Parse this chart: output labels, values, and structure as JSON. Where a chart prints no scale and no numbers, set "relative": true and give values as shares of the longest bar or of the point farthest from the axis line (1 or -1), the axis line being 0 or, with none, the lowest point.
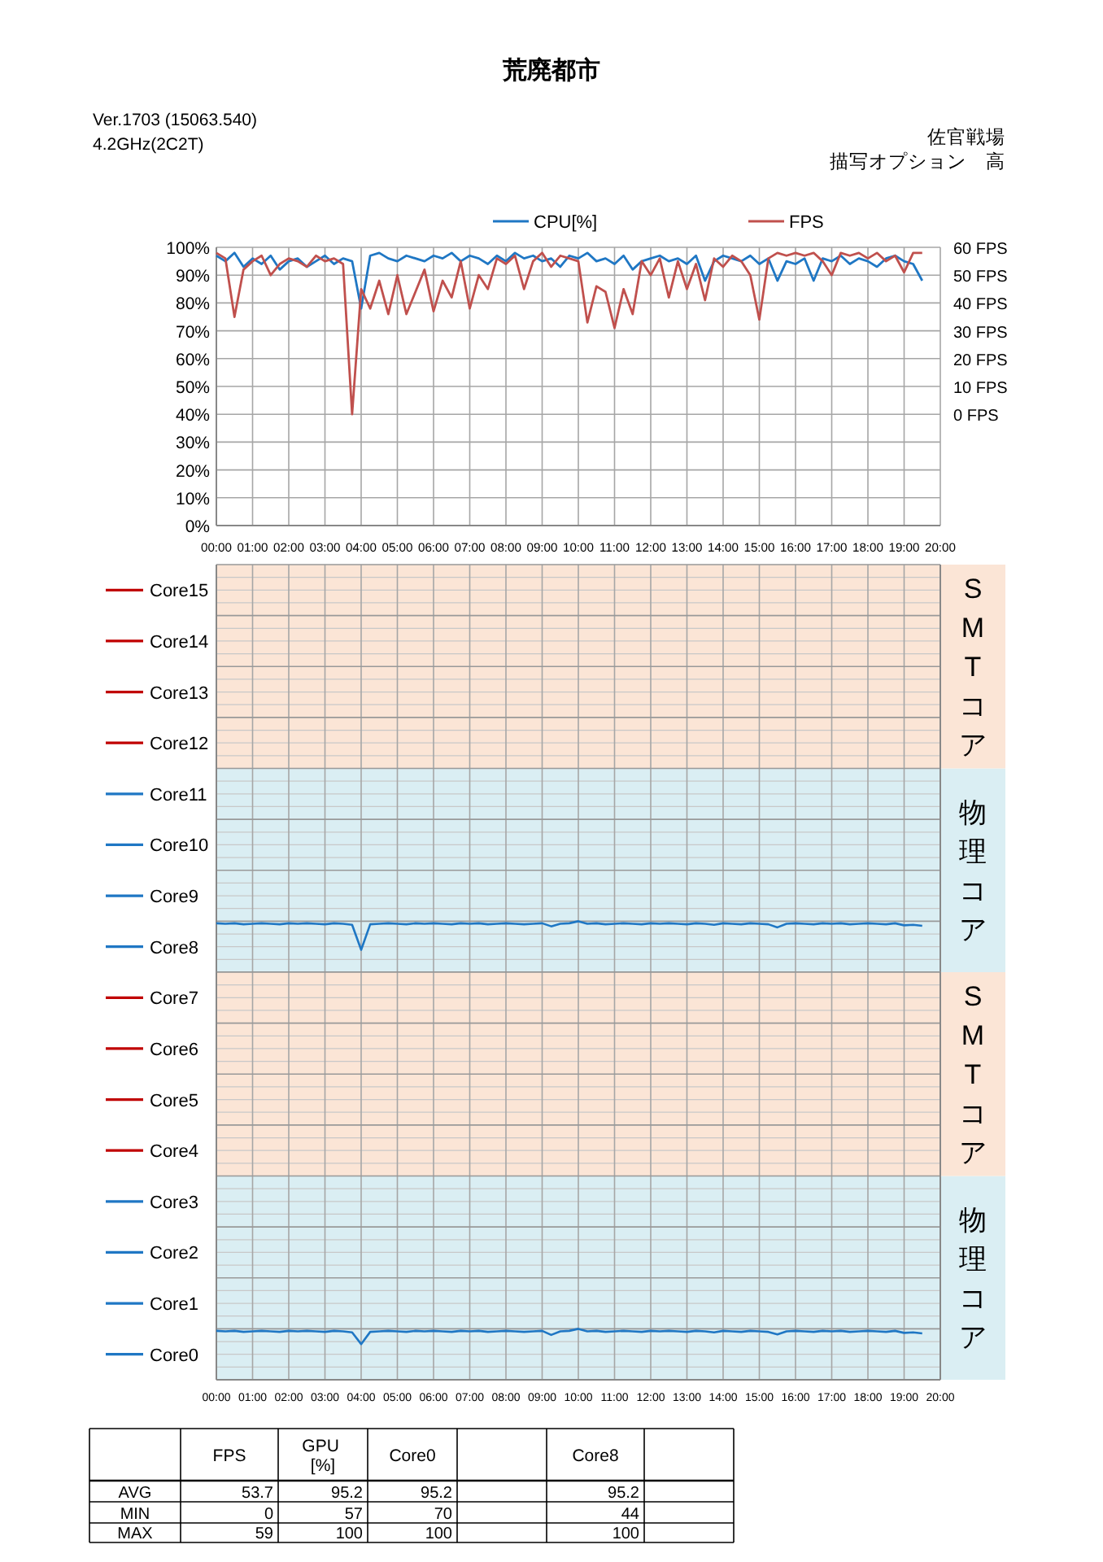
{
  "chart_data": [
    {
      "type": "line",
      "title": "荒廃都市",
      "annotations": [
        "Ver.1703 (15063.540)",
        "4.2GHz(2C2T)",
        "佐官戦場",
        "描写オプション　高"
      ],
      "x": [
        0,
        0.25,
        0.5,
        0.75,
        1,
        1.25,
        1.5,
        1.75,
        2,
        2.25,
        2.5,
        2.75,
        3,
        3.25,
        3.5,
        3.75,
        4,
        4.25,
        4.5,
        4.75,
        5,
        5.25,
        5.5,
        5.75,
        6,
        6.25,
        6.5,
        6.75,
        7,
        7.25,
        7.5,
        7.75,
        8,
        8.25,
        8.5,
        8.75,
        9,
        9.25,
        9.5,
        9.75,
        10,
        10.25,
        10.5,
        10.75,
        11,
        11.25,
        11.5,
        11.75,
        12,
        12.25,
        12.5,
        12.75,
        13,
        13.25,
        13.5,
        13.75,
        14,
        14.25,
        14.5,
        14.75,
        15,
        15.25,
        15.5,
        15.75,
        16,
        16.25,
        16.5,
        16.75,
        17,
        17.25,
        17.5,
        17.75,
        18,
        18.25,
        18.5,
        18.75,
        19,
        19.25,
        19.5
      ],
      "xlim": [
        0,
        20
      ],
      "xticks": [
        {
          "value": 0,
          "label": "00:00"
        },
        {
          "value": 1,
          "label": "01:00"
        },
        {
          "value": 2,
          "label": "02:00"
        },
        {
          "value": 3,
          "label": "03:00"
        },
        {
          "value": 4,
          "label": "04:00"
        },
        {
          "value": 5,
          "label": "05:00"
        },
        {
          "value": 6,
          "label": "06:00"
        },
        {
          "value": 7,
          "label": "07:00"
        },
        {
          "value": 8,
          "label": "08:00"
        },
        {
          "value": 9,
          "label": "09:00"
        },
        {
          "value": 10,
          "label": "10:00"
        },
        {
          "value": 11,
          "label": "11:00"
        },
        {
          "value": 12,
          "label": "12:00"
        },
        {
          "value": 13,
          "label": "13:00"
        },
        {
          "value": 14,
          "label": "14:00"
        },
        {
          "value": 15,
          "label": "15:00"
        },
        {
          "value": 16,
          "label": "16:00"
        },
        {
          "value": 17,
          "label": "17:00"
        },
        {
          "value": 18,
          "label": "18:00"
        },
        {
          "value": 19,
          "label": "19:00"
        },
        {
          "value": 20,
          "label": "20:00"
        }
      ],
      "ylim": [
        0,
        100
      ],
      "yticks": [
        {
          "value": 0,
          "label": "0%"
        },
        {
          "value": 10,
          "label": "10%"
        },
        {
          "value": 20,
          "label": "20%"
        },
        {
          "value": 30,
          "label": "30%"
        },
        {
          "value": 40,
          "label": "40%"
        },
        {
          "value": 50,
          "label": "50%"
        },
        {
          "value": 60,
          "label": "60%"
        },
        {
          "value": 70,
          "label": "70%"
        },
        {
          "value": 80,
          "label": "80%"
        },
        {
          "value": 90,
          "label": "90%"
        },
        {
          "value": 100,
          "label": "100%"
        }
      ],
      "y2lim": [
        -40,
        60
      ],
      "y2ticks": [
        {
          "value": 0,
          "label": "0 FPS"
        },
        {
          "value": 10,
          "label": "10 FPS"
        },
        {
          "value": 20,
          "label": "20 FPS"
        },
        {
          "value": 30,
          "label": "30 FPS"
        },
        {
          "value": 40,
          "label": "40 FPS"
        },
        {
          "value": 50,
          "label": "50 FPS"
        },
        {
          "value": 60,
          "label": "60 FPS"
        }
      ],
      "grid": true,
      "legend": "top",
      "series": [
        {
          "name": "CPU[%]",
          "color": "#1f77c4",
          "values": [
            97,
            95,
            98,
            93,
            96,
            94,
            97,
            92,
            95,
            96,
            93,
            95,
            97,
            94,
            96,
            95,
            78,
            97,
            98,
            96,
            95,
            97,
            96,
            95,
            97,
            96,
            98,
            95,
            97,
            96,
            94,
            97,
            95,
            98,
            96,
            97,
            95,
            96,
            93,
            97,
            96,
            98,
            95,
            96,
            94,
            97,
            92,
            95,
            96,
            97,
            95,
            96,
            94,
            97,
            88,
            95,
            97,
            96,
            95,
            97,
            94,
            96,
            88,
            95,
            94,
            96,
            88,
            96,
            95,
            97,
            94,
            96,
            95,
            93,
            96,
            97,
            95,
            94,
            88
          ]
        },
        {
          "name": "FPS",
          "color": "#c0504d",
          "axis": "y2",
          "values": [
            58,
            56,
            35,
            52,
            55,
            57,
            50,
            54,
            56,
            55,
            53,
            57,
            55,
            56,
            54,
            0,
            45,
            38,
            48,
            36,
            50,
            36,
            44,
            52,
            37,
            48,
            42,
            55,
            38,
            50,
            45,
            56,
            54,
            57,
            45,
            55,
            58,
            53,
            57,
            56,
            55,
            33,
            46,
            44,
            31,
            45,
            36,
            55,
            50,
            56,
            42,
            55,
            45,
            54,
            41,
            56,
            53,
            57,
            55,
            50,
            34,
            56,
            58,
            57,
            58,
            57,
            58,
            55,
            50,
            58,
            57,
            58,
            56,
            58,
            55,
            57,
            51,
            58,
            58
          ]
        }
      ]
    },
    {
      "type": "line",
      "relative": true,
      "x": [
        0,
        0.25,
        0.5,
        0.75,
        1,
        1.25,
        1.5,
        1.75,
        2,
        2.25,
        2.5,
        2.75,
        3,
        3.25,
        3.5,
        3.75,
        4,
        4.25,
        4.5,
        4.75,
        5,
        5.25,
        5.5,
        5.75,
        6,
        6.25,
        6.5,
        6.75,
        7,
        7.25,
        7.5,
        7.75,
        8,
        8.25,
        8.5,
        8.75,
        9,
        9.25,
        9.5,
        9.75,
        10,
        10.25,
        10.5,
        10.75,
        11,
        11.25,
        11.5,
        11.75,
        12,
        12.25,
        12.5,
        12.75,
        13,
        13.25,
        13.5,
        13.75,
        14,
        14.25,
        14.5,
        14.75,
        15,
        15.25,
        15.5,
        15.75,
        16,
        16.25,
        16.5,
        16.75,
        17,
        17.25,
        17.5,
        17.75,
        18,
        18.25,
        18.5,
        18.75,
        19,
        19.25,
        19.5
      ],
      "xlim": [
        0,
        20
      ],
      "xticks": [
        0,
        1,
        2,
        3,
        4,
        5,
        6,
        7,
        8,
        9,
        10,
        11,
        12,
        13,
        14,
        15,
        16,
        17,
        18,
        19,
        20
      ],
      "grid": true,
      "legend": "left",
      "tick_labels": false,
      "bands": [
        {
          "axis": "y",
          "from": 0,
          "to": 4,
          "label": "物理コア",
          "color": "#daeef3"
        },
        {
          "axis": "y",
          "from": 4,
          "to": 8,
          "label": "SMTコア",
          "color": "#fbe5d6"
        }
      ],
      "series": [
        {
          "name": "Core8",
          "color": "#1f77c4",
          "values": [
            0.96,
            0.95,
            0.96,
            0.94,
            0.95,
            0.96,
            0.95,
            0.94,
            0.96,
            0.95,
            0.96,
            0.95,
            0.94,
            0.96,
            0.95,
            0.93,
            0.44,
            0.94,
            0.95,
            0.96,
            0.95,
            0.94,
            0.96,
            0.95,
            0.96,
            0.95,
            0.94,
            0.96,
            0.95,
            0.96,
            0.94,
            0.95,
            0.96,
            0.95,
            0.94,
            0.95,
            0.96,
            0.9,
            0.95,
            0.96,
            1,
            0.95,
            0.96,
            0.94,
            0.95,
            0.96,
            0.95,
            0.94,
            0.96,
            0.95,
            0.96,
            0.95,
            0.94,
            0.96,
            0.95,
            0.93,
            0.96,
            0.95,
            0.94,
            0.96,
            0.95,
            0.94,
            0.88,
            0.95,
            0.96,
            0.95,
            0.94,
            0.96,
            0.95,
            0.96,
            0.94,
            0.95,
            0.96,
            0.95,
            0.94,
            0.96,
            0.92,
            0.93,
            0.91
          ]
        },
        {
          "name": "Core9",
          "color": "#1f77c4",
          "values": [
            null,
            null,
            null,
            null,
            null,
            null,
            null,
            null,
            null,
            null,
            null,
            null,
            null,
            null,
            null,
            null,
            null,
            null,
            null,
            null,
            null,
            null,
            null,
            null,
            null,
            null,
            null,
            null,
            null,
            null,
            null,
            null,
            null,
            null,
            null,
            null,
            null,
            null,
            null,
            null,
            null,
            null,
            null,
            null,
            null,
            null,
            null,
            null,
            null,
            null,
            null,
            null,
            null,
            null,
            null,
            null,
            null,
            null,
            null,
            null,
            null,
            null,
            null,
            null,
            null,
            null,
            null,
            null,
            null,
            null,
            null,
            null,
            null,
            null,
            null,
            null,
            null,
            null,
            null
          ]
        },
        {
          "name": "Core10",
          "color": "#1f77c4",
          "values": [
            null,
            null,
            null,
            null,
            null,
            null,
            null,
            null,
            null,
            null,
            null,
            null,
            null,
            null,
            null,
            null,
            null,
            null,
            null,
            null,
            null,
            null,
            null,
            null,
            null,
            null,
            null,
            null,
            null,
            null,
            null,
            null,
            null,
            null,
            null,
            null,
            null,
            null,
            null,
            null,
            null,
            null,
            null,
            null,
            null,
            null,
            null,
            null,
            null,
            null,
            null,
            null,
            null,
            null,
            null,
            null,
            null,
            null,
            null,
            null,
            null,
            null,
            null,
            null,
            null,
            null,
            null,
            null,
            null,
            null,
            null,
            null,
            null,
            null,
            null,
            null,
            null,
            null,
            null
          ]
        },
        {
          "name": "Core11",
          "color": "#1f77c4",
          "values": [
            null,
            null,
            null,
            null,
            null,
            null,
            null,
            null,
            null,
            null,
            null,
            null,
            null,
            null,
            null,
            null,
            null,
            null,
            null,
            null,
            null,
            null,
            null,
            null,
            null,
            null,
            null,
            null,
            null,
            null,
            null,
            null,
            null,
            null,
            null,
            null,
            null,
            null,
            null,
            null,
            null,
            null,
            null,
            null,
            null,
            null,
            null,
            null,
            null,
            null,
            null,
            null,
            null,
            null,
            null,
            null,
            null,
            null,
            null,
            null,
            null,
            null,
            null,
            null,
            null,
            null,
            null,
            null,
            null,
            null,
            null,
            null,
            null,
            null,
            null,
            null,
            null,
            null,
            null
          ]
        },
        {
          "name": "Core12",
          "color": "#c00000",
          "values": [
            null,
            null,
            null,
            null,
            null,
            null,
            null,
            null,
            null,
            null,
            null,
            null,
            null,
            null,
            null,
            null,
            null,
            null,
            null,
            null,
            null,
            null,
            null,
            null,
            null,
            null,
            null,
            null,
            null,
            null,
            null,
            null,
            null,
            null,
            null,
            null,
            null,
            null,
            null,
            null,
            null,
            null,
            null,
            null,
            null,
            null,
            null,
            null,
            null,
            null,
            null,
            null,
            null,
            null,
            null,
            null,
            null,
            null,
            null,
            null,
            null,
            null,
            null,
            null,
            null,
            null,
            null,
            null,
            null,
            null,
            null,
            null,
            null,
            null,
            null,
            null,
            null,
            null,
            null
          ]
        },
        {
          "name": "Core13",
          "color": "#c00000",
          "values": [
            null,
            null,
            null,
            null,
            null,
            null,
            null,
            null,
            null,
            null,
            null,
            null,
            null,
            null,
            null,
            null,
            null,
            null,
            null,
            null,
            null,
            null,
            null,
            null,
            null,
            null,
            null,
            null,
            null,
            null,
            null,
            null,
            null,
            null,
            null,
            null,
            null,
            null,
            null,
            null,
            null,
            null,
            null,
            null,
            null,
            null,
            null,
            null,
            null,
            null,
            null,
            null,
            null,
            null,
            null,
            null,
            null,
            null,
            null,
            null,
            null,
            null,
            null,
            null,
            null,
            null,
            null,
            null,
            null,
            null,
            null,
            null,
            null,
            null,
            null,
            null,
            null,
            null,
            null
          ]
        },
        {
          "name": "Core14",
          "color": "#c00000",
          "values": [
            null,
            null,
            null,
            null,
            null,
            null,
            null,
            null,
            null,
            null,
            null,
            null,
            null,
            null,
            null,
            null,
            null,
            null,
            null,
            null,
            null,
            null,
            null,
            null,
            null,
            null,
            null,
            null,
            null,
            null,
            null,
            null,
            null,
            null,
            null,
            null,
            null,
            null,
            null,
            null,
            null,
            null,
            null,
            null,
            null,
            null,
            null,
            null,
            null,
            null,
            null,
            null,
            null,
            null,
            null,
            null,
            null,
            null,
            null,
            null,
            null,
            null,
            null,
            null,
            null,
            null,
            null,
            null,
            null,
            null,
            null,
            null,
            null,
            null,
            null,
            null,
            null,
            null,
            null
          ]
        },
        {
          "name": "Core15",
          "color": "#c00000",
          "values": [
            null,
            null,
            null,
            null,
            null,
            null,
            null,
            null,
            null,
            null,
            null,
            null,
            null,
            null,
            null,
            null,
            null,
            null,
            null,
            null,
            null,
            null,
            null,
            null,
            null,
            null,
            null,
            null,
            null,
            null,
            null,
            null,
            null,
            null,
            null,
            null,
            null,
            null,
            null,
            null,
            null,
            null,
            null,
            null,
            null,
            null,
            null,
            null,
            null,
            null,
            null,
            null,
            null,
            null,
            null,
            null,
            null,
            null,
            null,
            null,
            null,
            null,
            null,
            null,
            null,
            null,
            null,
            null,
            null,
            null,
            null,
            null,
            null,
            null,
            null,
            null,
            null,
            null,
            null
          ]
        }
      ]
    },
    {
      "type": "line",
      "relative": true,
      "x": [
        0,
        0.25,
        0.5,
        0.75,
        1,
        1.25,
        1.5,
        1.75,
        2,
        2.25,
        2.5,
        2.75,
        3,
        3.25,
        3.5,
        3.75,
        4,
        4.25,
        4.5,
        4.75,
        5,
        5.25,
        5.5,
        5.75,
        6,
        6.25,
        6.5,
        6.75,
        7,
        7.25,
        7.5,
        7.75,
        8,
        8.25,
        8.5,
        8.75,
        9,
        9.25,
        9.5,
        9.75,
        10,
        10.25,
        10.5,
        10.75,
        11,
        11.25,
        11.5,
        11.75,
        12,
        12.25,
        12.5,
        12.75,
        13,
        13.25,
        13.5,
        13.75,
        14,
        14.25,
        14.5,
        14.75,
        15,
        15.25,
        15.5,
        15.75,
        16,
        16.25,
        16.5,
        16.75,
        17,
        17.25,
        17.5,
        17.75,
        18,
        18.25,
        18.5,
        18.75,
        19,
        19.25,
        19.5
      ],
      "xlim": [
        0,
        20
      ],
      "xticks": [
        {
          "value": 0,
          "label": "00:00"
        },
        {
          "value": 1,
          "label": "01:00"
        },
        {
          "value": 2,
          "label": "02:00"
        },
        {
          "value": 3,
          "label": "03:00"
        },
        {
          "value": 4,
          "label": "04:00"
        },
        {
          "value": 5,
          "label": "05:00"
        },
        {
          "value": 6,
          "label": "06:00"
        },
        {
          "value": 7,
          "label": "07:00"
        },
        {
          "value": 8,
          "label": "08:00"
        },
        {
          "value": 9,
          "label": "09:00"
        },
        {
          "value": 10,
          "label": "10:00"
        },
        {
          "value": 11,
          "label": "11:00"
        },
        {
          "value": 12,
          "label": "12:00"
        },
        {
          "value": 13,
          "label": "13:00"
        },
        {
          "value": 14,
          "label": "14:00"
        },
        {
          "value": 15,
          "label": "15:00"
        },
        {
          "value": 16,
          "label": "16:00"
        },
        {
          "value": 17,
          "label": "17:00"
        },
        {
          "value": 18,
          "label": "18:00"
        },
        {
          "value": 19,
          "label": "19:00"
        },
        {
          "value": 20,
          "label": "20:00"
        }
      ],
      "grid": true,
      "legend": "left",
      "tick_labels": "x",
      "bands": [
        {
          "axis": "y",
          "from": 0,
          "to": 4,
          "label": "物理コア",
          "color": "#daeef3"
        },
        {
          "axis": "y",
          "from": 4,
          "to": 8,
          "label": "SMTコア",
          "color": "#fbe5d6"
        }
      ],
      "series": [
        {
          "name": "Core0",
          "color": "#1f77c4",
          "values": [
            0.96,
            0.95,
            0.96,
            0.94,
            0.95,
            0.96,
            0.95,
            0.94,
            0.96,
            0.95,
            0.96,
            0.95,
            0.94,
            0.96,
            0.95,
            0.93,
            0.7,
            0.94,
            0.95,
            0.96,
            0.95,
            0.94,
            0.96,
            0.95,
            0.96,
            0.95,
            0.94,
            0.96,
            0.95,
            0.96,
            0.94,
            0.95,
            0.96,
            0.95,
            0.94,
            0.95,
            0.96,
            0.88,
            0.95,
            0.96,
            1,
            0.95,
            0.96,
            0.94,
            0.95,
            0.96,
            0.95,
            0.94,
            0.96,
            0.95,
            0.96,
            0.95,
            0.94,
            0.96,
            0.95,
            0.93,
            0.96,
            0.95,
            0.94,
            0.96,
            0.95,
            0.94,
            0.89,
            0.95,
            0.96,
            0.95,
            0.94,
            0.96,
            0.95,
            0.96,
            0.94,
            0.95,
            0.96,
            0.95,
            0.94,
            0.96,
            0.92,
            0.93,
            0.91
          ]
        },
        {
          "name": "Core1",
          "color": "#1f77c4",
          "values": [
            null,
            null,
            null,
            null,
            null,
            null,
            null,
            null,
            null,
            null,
            null,
            null,
            null,
            null,
            null,
            null,
            null,
            null,
            null,
            null,
            null,
            null,
            null,
            null,
            null,
            null,
            null,
            null,
            null,
            null,
            null,
            null,
            null,
            null,
            null,
            null,
            null,
            null,
            null,
            null,
            null,
            null,
            null,
            null,
            null,
            null,
            null,
            null,
            null,
            null,
            null,
            null,
            null,
            null,
            null,
            null,
            null,
            null,
            null,
            null,
            null,
            null,
            null,
            null,
            null,
            null,
            null,
            null,
            null,
            null,
            null,
            null,
            null,
            null,
            null,
            null,
            null,
            null,
            null
          ]
        },
        {
          "name": "Core2",
          "color": "#1f77c4",
          "values": [
            null,
            null,
            null,
            null,
            null,
            null,
            null,
            null,
            null,
            null,
            null,
            null,
            null,
            null,
            null,
            null,
            null,
            null,
            null,
            null,
            null,
            null,
            null,
            null,
            null,
            null,
            null,
            null,
            null,
            null,
            null,
            null,
            null,
            null,
            null,
            null,
            null,
            null,
            null,
            null,
            null,
            null,
            null,
            null,
            null,
            null,
            null,
            null,
            null,
            null,
            null,
            null,
            null,
            null,
            null,
            null,
            null,
            null,
            null,
            null,
            null,
            null,
            null,
            null,
            null,
            null,
            null,
            null,
            null,
            null,
            null,
            null,
            null,
            null,
            null,
            null,
            null,
            null,
            null
          ]
        },
        {
          "name": "Core3",
          "color": "#1f77c4",
          "values": [
            null,
            null,
            null,
            null,
            null,
            null,
            null,
            null,
            null,
            null,
            null,
            null,
            null,
            null,
            null,
            null,
            null,
            null,
            null,
            null,
            null,
            null,
            null,
            null,
            null,
            null,
            null,
            null,
            null,
            null,
            null,
            null,
            null,
            null,
            null,
            null,
            null,
            null,
            null,
            null,
            null,
            null,
            null,
            null,
            null,
            null,
            null,
            null,
            null,
            null,
            null,
            null,
            null,
            null,
            null,
            null,
            null,
            null,
            null,
            null,
            null,
            null,
            null,
            null,
            null,
            null,
            null,
            null,
            null,
            null,
            null,
            null,
            null,
            null,
            null,
            null,
            null,
            null,
            null
          ]
        },
        {
          "name": "Core4",
          "color": "#c00000",
          "values": [
            null,
            null,
            null,
            null,
            null,
            null,
            null,
            null,
            null,
            null,
            null,
            null,
            null,
            null,
            null,
            null,
            null,
            null,
            null,
            null,
            null,
            null,
            null,
            null,
            null,
            null,
            null,
            null,
            null,
            null,
            null,
            null,
            null,
            null,
            null,
            null,
            null,
            null,
            null,
            null,
            null,
            null,
            null,
            null,
            null,
            null,
            null,
            null,
            null,
            null,
            null,
            null,
            null,
            null,
            null,
            null,
            null,
            null,
            null,
            null,
            null,
            null,
            null,
            null,
            null,
            null,
            null,
            null,
            null,
            null,
            null,
            null,
            null,
            null,
            null,
            null,
            null,
            null,
            null
          ]
        },
        {
          "name": "Core5",
          "color": "#c00000",
          "values": [
            null,
            null,
            null,
            null,
            null,
            null,
            null,
            null,
            null,
            null,
            null,
            null,
            null,
            null,
            null,
            null,
            null,
            null,
            null,
            null,
            null,
            null,
            null,
            null,
            null,
            null,
            null,
            null,
            null,
            null,
            null,
            null,
            null,
            null,
            null,
            null,
            null,
            null,
            null,
            null,
            null,
            null,
            null,
            null,
            null,
            null,
            null,
            null,
            null,
            null,
            null,
            null,
            null,
            null,
            null,
            null,
            null,
            null,
            null,
            null,
            null,
            null,
            null,
            null,
            null,
            null,
            null,
            null,
            null,
            null,
            null,
            null,
            null,
            null,
            null,
            null,
            null,
            null,
            null
          ]
        },
        {
          "name": "Core6",
          "color": "#c00000",
          "values": [
            null,
            null,
            null,
            null,
            null,
            null,
            null,
            null,
            null,
            null,
            null,
            null,
            null,
            null,
            null,
            null,
            null,
            null,
            null,
            null,
            null,
            null,
            null,
            null,
            null,
            null,
            null,
            null,
            null,
            null,
            null,
            null,
            null,
            null,
            null,
            null,
            null,
            null,
            null,
            null,
            null,
            null,
            null,
            null,
            null,
            null,
            null,
            null,
            null,
            null,
            null,
            null,
            null,
            null,
            null,
            null,
            null,
            null,
            null,
            null,
            null,
            null,
            null,
            null,
            null,
            null,
            null,
            null,
            null,
            null,
            null,
            null,
            null,
            null,
            null,
            null,
            null,
            null,
            null
          ]
        },
        {
          "name": "Core7",
          "color": "#c00000",
          "values": [
            null,
            null,
            null,
            null,
            null,
            null,
            null,
            null,
            null,
            null,
            null,
            null,
            null,
            null,
            null,
            null,
            null,
            null,
            null,
            null,
            null,
            null,
            null,
            null,
            null,
            null,
            null,
            null,
            null,
            null,
            null,
            null,
            null,
            null,
            null,
            null,
            null,
            null,
            null,
            null,
            null,
            null,
            null,
            null,
            null,
            null,
            null,
            null,
            null,
            null,
            null,
            null,
            null,
            null,
            null,
            null,
            null,
            null,
            null,
            null,
            null,
            null,
            null,
            null,
            null,
            null,
            null,
            null,
            null,
            null,
            null,
            null,
            null,
            null,
            null,
            null,
            null,
            null,
            null
          ]
        }
      ]
    },
    {
      "type": "other",
      "data_labels": true,
      "categories": [
        "FPS",
        "GPU [%]",
        "Core0",
        null,
        "Core8",
        null
      ],
      "series": [
        {
          "name": "AVG",
          "values": [
            53.7,
            95.2,
            95.2,
            null,
            95.2,
            null
          ]
        },
        {
          "name": "MIN",
          "values": [
            0,
            57,
            70,
            null,
            44,
            null
          ]
        },
        {
          "name": "MAX",
          "values": [
            59,
            100,
            100,
            null,
            100,
            null
          ]
        }
      ]
    }
  ]
}
